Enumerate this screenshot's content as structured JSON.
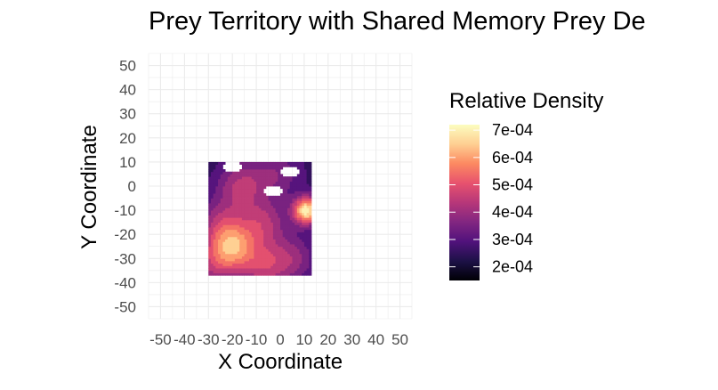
{
  "chart_data": {
    "type": "heatmap",
    "title": "Prey Territory with Shared Memory Prey De",
    "xlabel": "X Coordinate",
    "ylabel": "Y Coordinate",
    "xlim": [
      -55,
      55
    ],
    "ylim": [
      -55,
      55
    ],
    "x_ticks": [
      -50,
      -40,
      -30,
      -20,
      -10,
      0,
      10,
      20,
      30,
      40,
      50
    ],
    "y_ticks": [
      50,
      40,
      30,
      20,
      10,
      0,
      -10,
      -20,
      -30,
      -40,
      -50
    ],
    "x_tick_labels": [
      "-50",
      "-40",
      "-30",
      "-20",
      "-10",
      "0",
      "10",
      "20",
      "30",
      "40",
      "50"
    ],
    "y_tick_labels": [
      "50",
      "40",
      "30",
      "20",
      "10",
      "0",
      "-10",
      "-20",
      "-30",
      "-40",
      "-50"
    ],
    "grid": true,
    "legend": {
      "title": "Relative Density",
      "placement": "right",
      "breaks": [
        0.0007,
        0.0006,
        0.0005,
        0.0004,
        0.0003,
        0.0002
      ],
      "labels": [
        "7e-04",
        "6e-04",
        "5e-04",
        "4e-04",
        "3e-04",
        "2e-04"
      ],
      "range": [
        0.00015,
        0.00072
      ],
      "colormap": "magma",
      "colors": [
        "#000004",
        "#1d1147",
        "#51127c",
        "#822681",
        "#b73779",
        "#e7526e",
        "#fc8961",
        "#fecf92",
        "#fcfdbf"
      ]
    },
    "territory_extent": {
      "x": [
        -30,
        13
      ],
      "y": [
        -37,
        10
      ]
    },
    "density_peaks": [
      {
        "x": 11,
        "y": -10,
        "value": 0.0007
      },
      {
        "x": -20,
        "y": -25,
        "value": 0.00055
      },
      {
        "x": -17,
        "y": 0,
        "value": 0.00042
      },
      {
        "x": -7,
        "y": -15,
        "value": 0.00042
      },
      {
        "x": -25,
        "y": -15,
        "value": 0.00038
      },
      {
        "x": -7,
        "y": -33,
        "value": 0.00042
      },
      {
        "x": 5,
        "y": -30,
        "value": 0.00038
      },
      {
        "x": -28,
        "y": -33,
        "value": 0.00038
      },
      {
        "x": 2,
        "y": 5,
        "value": 0.0003
      },
      {
        "x": -5,
        "y": 5,
        "value": 0.00032
      }
    ],
    "density_holes": [
      {
        "x": -3,
        "y": -2
      },
      {
        "x": 4,
        "y": 6
      },
      {
        "x": -20,
        "y": 8
      }
    ]
  }
}
